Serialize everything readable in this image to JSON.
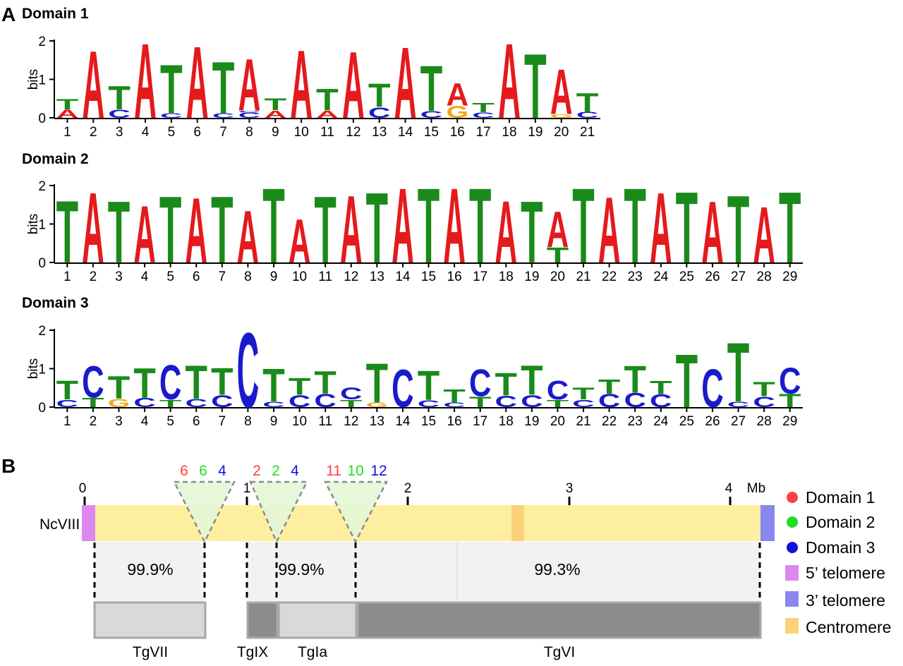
{
  "colors": {
    "A": "#e41a1c",
    "T": "#1a8a1a",
    "C": "#1a1acc",
    "G": "#f0a818",
    "domain1": "#ff4040",
    "domain2": "#22dd22",
    "domain3": "#1111dd",
    "telomere5": "#dd88ee",
    "telomere3": "#8888ee",
    "centromere": "#fbd27a",
    "chrom_fill": "#fdef9f",
    "synteny_fill": "#f2f2f2",
    "block_light": "#d9d9d9",
    "block_dark": "#8c8c8c"
  },
  "panelA": {
    "letter": "A",
    "ylabel": "bits",
    "yticks": [
      "0",
      "1",
      "2"
    ],
    "logos": [
      {
        "title": "Domain 1",
        "positions": [
          [
            [
              "A",
              0.22
            ],
            [
              "T",
              0.28
            ]
          ],
          [
            [
              "A",
              1.8
            ]
          ],
          [
            [
              "C",
              0.22
            ],
            [
              "T",
              0.62
            ]
          ],
          [
            [
              "A",
              2.0
            ]
          ],
          [
            [
              "C",
              0.12
            ],
            [
              "T",
              1.3
            ]
          ],
          [
            [
              "A",
              1.92
            ]
          ],
          [
            [
              "C",
              0.12
            ],
            [
              "T",
              1.38
            ]
          ],
          [
            [
              "C",
              0.14
            ],
            [
              "C",
              0.05
            ],
            [
              "A",
              1.38
            ]
          ],
          [
            [
              "A",
              0.2
            ],
            [
              "T",
              0.32
            ]
          ],
          [
            [
              "A",
              1.82
            ]
          ],
          [
            [
              "A",
              0.2
            ],
            [
              "T",
              0.58
            ]
          ],
          [
            [
              "A",
              1.78
            ]
          ],
          [
            [
              "C",
              0.28
            ],
            [
              "T",
              0.62
            ]
          ],
          [
            [
              "A",
              1.9
            ]
          ],
          [
            [
              "C",
              0.18
            ],
            [
              "T",
              1.22
            ]
          ],
          [
            [
              "G",
              0.32
            ],
            [
              "A",
              0.6
            ]
          ],
          [
            [
              "C",
              0.15
            ],
            [
              "T",
              0.25
            ]
          ],
          [
            [
              "A",
              2.0
            ]
          ],
          [
            [
              "T",
              1.72
            ]
          ],
          [
            [
              "G",
              0.1
            ],
            [
              "A",
              1.2
            ]
          ],
          [
            [
              "C",
              0.16
            ],
            [
              "T",
              0.5
            ]
          ]
        ]
      },
      {
        "title": "Domain 2",
        "positions": [
          [
            [
              "T",
              1.66
            ]
          ],
          [
            [
              "A",
              1.88
            ]
          ],
          [
            [
              "T",
              1.64
            ]
          ],
          [
            [
              "A",
              1.52
            ]
          ],
          [
            [
              "T",
              1.78
            ]
          ],
          [
            [
              "A",
              1.74
            ]
          ],
          [
            [
              "T",
              1.78
            ]
          ],
          [
            [
              "A",
              1.4
            ]
          ],
          [
            [
              "T",
              2.0
            ]
          ],
          [
            [
              "A",
              1.16
            ]
          ],
          [
            [
              "T",
              1.78
            ]
          ],
          [
            [
              "A",
              1.8
            ]
          ],
          [
            [
              "T",
              1.88
            ]
          ],
          [
            [
              "A",
              2.0
            ]
          ],
          [
            [
              "T",
              2.0
            ]
          ],
          [
            [
              "A",
              2.0
            ]
          ],
          [
            [
              "T",
              2.0
            ]
          ],
          [
            [
              "A",
              1.66
            ]
          ],
          [
            [
              "T",
              1.64
            ]
          ],
          [
            [
              "T",
              0.4
            ],
            [
              "A",
              0.95
            ]
          ],
          [
            [
              "T",
              2.0
            ]
          ],
          [
            [
              "A",
              1.76
            ]
          ],
          [
            [
              "T",
              2.0
            ]
          ],
          [
            [
              "A",
              1.88
            ]
          ],
          [
            [
              "T",
              1.9
            ]
          ],
          [
            [
              "A",
              1.64
            ]
          ],
          [
            [
              "T",
              1.8
            ]
          ],
          [
            [
              "A",
              1.5
            ]
          ],
          [
            [
              "T",
              1.9
            ]
          ]
        ]
      },
      {
        "title": "Domain 3",
        "positions": [
          [
            [
              "C",
              0.2
            ],
            [
              "T",
              0.5
            ]
          ],
          [
            [
              "T",
              0.25
            ],
            [
              "C",
              0.85
            ]
          ],
          [
            [
              "G",
              0.22
            ],
            [
              "T",
              0.6
            ]
          ],
          [
            [
              "C",
              0.24
            ],
            [
              "T",
              0.8
            ]
          ],
          [
            [
              "T",
              0.2
            ],
            [
              "C",
              0.92
            ]
          ],
          [
            [
              "C",
              0.22
            ],
            [
              "T",
              0.9
            ]
          ],
          [
            [
              "C",
              0.32
            ],
            [
              "T",
              0.72
            ]
          ],
          [
            [
              "C",
              2.0
            ]
          ],
          [
            [
              "C",
              0.15
            ],
            [
              "T",
              0.88
            ]
          ],
          [
            [
              "C",
              0.32
            ],
            [
              "T",
              0.45
            ]
          ],
          [
            [
              "C",
              0.35
            ],
            [
              "T",
              0.6
            ]
          ],
          [
            [
              "T",
              0.2
            ],
            [
              "C",
              0.32
            ]
          ],
          [
            [
              "G",
              0.12
            ],
            [
              "T",
              1.05
            ]
          ],
          [
            [
              "C",
              1.0
            ]
          ],
          [
            [
              "C",
              0.18
            ],
            [
              "T",
              0.78
            ]
          ],
          [
            [
              "C",
              0.12
            ],
            [
              "T",
              0.35
            ]
          ],
          [
            [
              "T",
              0.28
            ],
            [
              "C",
              0.72
            ]
          ],
          [
            [
              "C",
              0.3
            ],
            [
              "T",
              0.6
            ]
          ],
          [
            [
              "C",
              0.32
            ],
            [
              "T",
              0.78
            ]
          ],
          [
            [
              "T",
              0.2
            ],
            [
              "C",
              0.5
            ]
          ],
          [
            [
              "C",
              0.2
            ],
            [
              "T",
              0.32
            ]
          ],
          [
            [
              "C",
              0.35
            ],
            [
              "T",
              0.38
            ]
          ],
          [
            [
              "C",
              0.38
            ],
            [
              "T",
              0.72
            ]
          ],
          [
            [
              "C",
              0.34
            ],
            [
              "T",
              0.36
            ]
          ],
          [
            [
              "T",
              1.42
            ]
          ],
          [
            [
              "C",
              1.02
            ]
          ],
          [
            [
              "C",
              0.15
            ],
            [
              "T",
              1.58
            ]
          ],
          [
            [
              "C",
              0.28
            ],
            [
              "T",
              0.38
            ]
          ],
          [
            [
              "T",
              0.35
            ],
            [
              "C",
              0.7
            ]
          ]
        ]
      }
    ]
  },
  "panelB": {
    "letter": "B",
    "chromosome": "NcVIII",
    "mb_ticks": [
      "0",
      "1",
      "2",
      "3",
      "4"
    ],
    "mb_unit": "Mb",
    "insertions": [
      {
        "counts": [
          "6",
          "6",
          "4"
        ]
      },
      {
        "counts": [
          "2",
          "2",
          "4"
        ]
      },
      {
        "counts": [
          "11",
          "10",
          "12"
        ]
      }
    ],
    "identities": [
      "99.9%",
      "99.9%",
      "99.3%"
    ],
    "toxo_chromosomes": [
      "TgVII",
      "TgIX",
      "TgIa",
      "TgVI"
    ],
    "legend": [
      {
        "label": "Domain 1",
        "shape": "circle",
        "color": "#ff4040"
      },
      {
        "label": "Domain 2",
        "shape": "circle",
        "color": "#22dd22"
      },
      {
        "label": "Domain 3",
        "shape": "circle",
        "color": "#1111dd"
      },
      {
        "label": "5’ telomere",
        "shape": "square",
        "color": "#dd88ee"
      },
      {
        "label": "3’ telomere",
        "shape": "square",
        "color": "#8888ee"
      },
      {
        "label": "Centromere",
        "shape": "square",
        "color": "#fbd27a"
      }
    ]
  }
}
